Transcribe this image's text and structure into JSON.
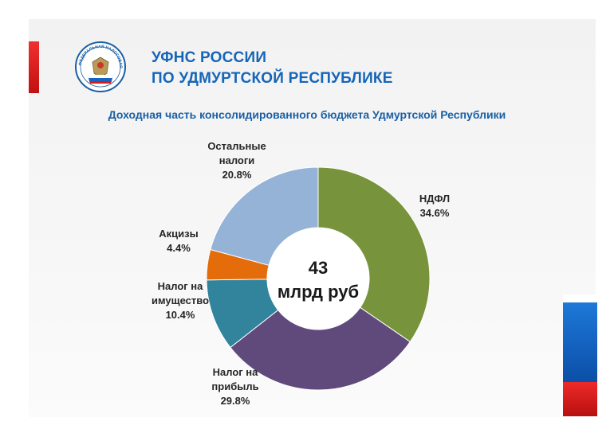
{
  "header": {
    "title_line1": "УФНС РОССИИ",
    "title_line2": "ПО УДМУРТСКОЙ РЕСПУБЛИКЕ",
    "emblem_text": "ФЕДЕРАЛЬНАЯ НАЛОГОВАЯ СЛУЖБА"
  },
  "colors": {
    "accent_blue": "#1565b8",
    "stripe_red": "#d61c1c",
    "stripe_blue": "#1565c0"
  },
  "chart_data": {
    "type": "pie",
    "title": "Доходная часть консолидированного бюджета Удмуртской Республики",
    "center_label": [
      "43",
      "млрд руб"
    ],
    "series": [
      {
        "name": "НДФЛ",
        "label_lines": [
          "НДФЛ"
        ],
        "value": 34.6,
        "value_label": "34.6%",
        "color": "#77933c"
      },
      {
        "name": "Налог на прибыль",
        "label_lines": [
          "Налог на",
          "прибыль"
        ],
        "value": 29.8,
        "value_label": "29.8%",
        "color": "#604a7b"
      },
      {
        "name": "Налог на имущество",
        "label_lines": [
          "Налог на",
          "имущество"
        ],
        "value": 10.4,
        "value_label": "10.4%",
        "color": "#31849b"
      },
      {
        "name": "Акцизы",
        "label_lines": [
          "Акцизы"
        ],
        "value": 4.4,
        "value_label": "4.4%",
        "color": "#e46c0a"
      },
      {
        "name": "Остальные налоги",
        "label_lines": [
          "Остальные",
          "налоги"
        ],
        "value": 20.8,
        "value_label": "20.8%",
        "color": "#95b3d7"
      }
    ]
  }
}
